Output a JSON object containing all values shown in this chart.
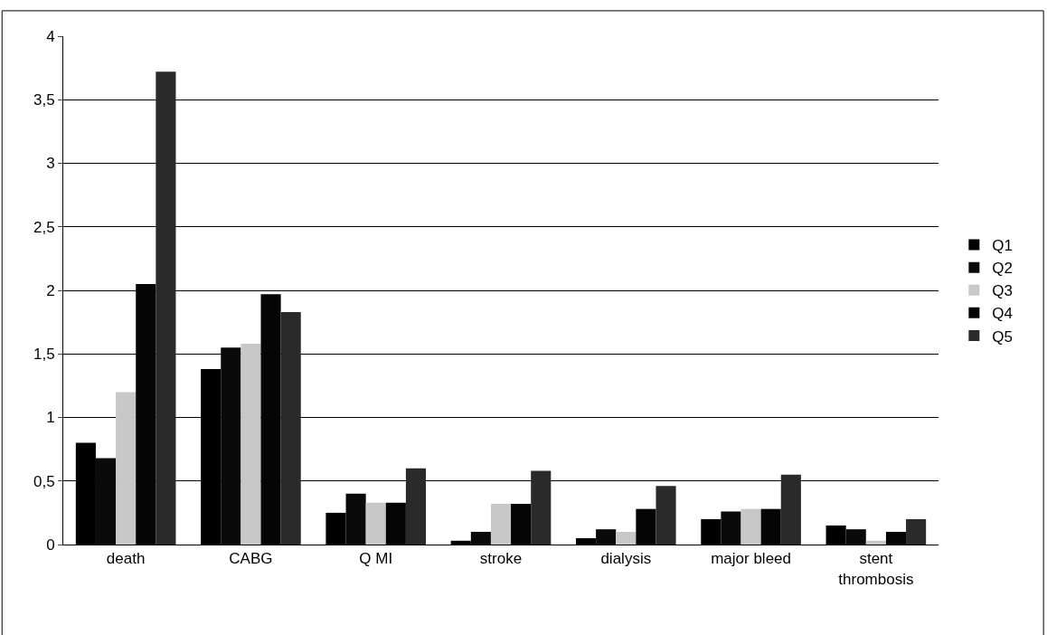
{
  "chart_data": {
    "type": "bar",
    "categories": [
      "death",
      "CABG",
      "Q MI",
      "stroke",
      "dialysis",
      "major bleed",
      "stent thrombosis"
    ],
    "series": [
      {
        "name": "Q1",
        "color": "#000000",
        "values": [
          0.8,
          1.38,
          0.25,
          0.03,
          0.05,
          0.2,
          0.15
        ]
      },
      {
        "name": "Q2",
        "color": "#0a0a0a",
        "values": [
          0.68,
          1.55,
          0.4,
          0.1,
          0.12,
          0.26,
          0.12
        ]
      },
      {
        "name": "Q3",
        "color": "#c8c8c8",
        "values": [
          1.2,
          1.58,
          0.33,
          0.32,
          0.1,
          0.28,
          0.03
        ]
      },
      {
        "name": "Q4",
        "color": "#050505",
        "values": [
          2.05,
          1.97,
          0.33,
          0.32,
          0.28,
          0.28,
          0.1
        ]
      },
      {
        "name": "Q5",
        "color": "#2a2a2a",
        "values": [
          3.72,
          1.83,
          0.6,
          0.58,
          0.46,
          0.55,
          0.2
        ]
      }
    ],
    "ylim": [
      0,
      4
    ],
    "yticks": [
      0,
      {
        "value": 0.5,
        "label": "0,5"
      },
      1,
      {
        "value": 1.5,
        "label": "1,5"
      },
      2,
      {
        "value": 2.5,
        "label": "2,5"
      },
      3,
      {
        "value": 3.5,
        "label": "3,5"
      },
      4
    ],
    "grid": "y",
    "legend": "right"
  }
}
